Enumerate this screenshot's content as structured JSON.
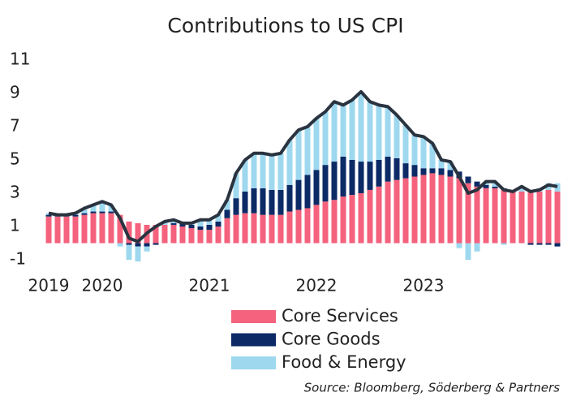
{
  "chart_data": {
    "type": "bar",
    "stacked": true,
    "title": "Contributions to US CPI",
    "source": "Source: Bloomberg, Söderberg & Partners",
    "categories": [
      "2019",
      null,
      null,
      null,
      null,
      null,
      "2020",
      null,
      null,
      null,
      null,
      null,
      null,
      null,
      null,
      null,
      null,
      null,
      "2021",
      null,
      null,
      null,
      null,
      null,
      null,
      null,
      null,
      null,
      null,
      null,
      "2022",
      null,
      null,
      null,
      null,
      null,
      null,
      null,
      null,
      null,
      null,
      null,
      "2023",
      null,
      null,
      null,
      null,
      null,
      null,
      null,
      null,
      null,
      null,
      null,
      null,
      null,
      null,
      null
    ],
    "ylim": [
      -1,
      11
    ],
    "yticks": [
      -1,
      1,
      3,
      5,
      7,
      9,
      11
    ],
    "series": [
      {
        "name": "Core Services",
        "color": "#f4627d",
        "values": [
          1.6,
          1.6,
          1.6,
          1.6,
          1.7,
          1.8,
          1.8,
          1.8,
          1.7,
          1.3,
          1.2,
          1.1,
          1.1,
          1.1,
          1.1,
          1.0,
          0.9,
          0.8,
          0.8,
          1.0,
          1.5,
          1.7,
          1.8,
          1.8,
          1.7,
          1.7,
          1.7,
          1.9,
          2.0,
          2.1,
          2.3,
          2.5,
          2.6,
          2.8,
          2.9,
          3.0,
          3.2,
          3.4,
          3.7,
          3.8,
          3.9,
          4.0,
          4.1,
          4.2,
          4.1,
          4.0,
          3.9,
          3.6,
          3.4,
          3.3,
          3.3,
          3.2,
          3.1,
          3.1,
          3.1,
          3.1,
          3.2,
          3.1
        ]
      },
      {
        "name": "Core Goods",
        "color": "#0b2a66",
        "values": [
          0.1,
          0.1,
          0.1,
          0.1,
          0.1,
          0.1,
          0.1,
          0.1,
          0.0,
          -0.1,
          -0.2,
          -0.2,
          -0.1,
          0.0,
          0.1,
          0.2,
          0.2,
          0.2,
          0.3,
          0.3,
          0.5,
          1.0,
          1.3,
          1.5,
          1.6,
          1.5,
          1.5,
          1.6,
          1.8,
          2.0,
          2.1,
          2.2,
          2.3,
          2.4,
          2.1,
          1.9,
          1.7,
          1.6,
          1.5,
          1.3,
          0.9,
          0.7,
          0.4,
          0.3,
          0.4,
          0.4,
          0.4,
          0.4,
          0.3,
          0.2,
          0.1,
          0.1,
          0.0,
          0.0,
          -0.1,
          -0.1,
          -0.1,
          -0.2
        ]
      },
      {
        "name": "Food & Energy",
        "color": "#9ed8ef",
        "values": [
          0.1,
          0.0,
          0.0,
          0.1,
          0.3,
          0.4,
          0.6,
          0.4,
          -0.2,
          -0.9,
          -0.9,
          -0.3,
          0.0,
          0.2,
          0.2,
          0.0,
          0.1,
          0.4,
          0.3,
          0.4,
          0.6,
          1.5,
          1.9,
          2.1,
          2.1,
          2.1,
          2.2,
          2.7,
          3.0,
          2.9,
          3.1,
          3.2,
          3.6,
          3.1,
          3.6,
          4.2,
          3.6,
          3.3,
          3.0,
          2.6,
          2.3,
          1.8,
          1.9,
          1.5,
          0.5,
          0.5,
          -0.3,
          -1.0,
          -0.5,
          0.2,
          0.3,
          -0.1,
          0.0,
          0.3,
          0.1,
          0.2,
          0.4,
          0.5
        ]
      },
      {
        "type": "line",
        "color": "#2a3340",
        "values": [
          1.8,
          1.7,
          1.7,
          1.8,
          2.1,
          2.3,
          2.5,
          2.3,
          1.5,
          0.3,
          0.1,
          0.6,
          1.0,
          1.3,
          1.4,
          1.2,
          1.2,
          1.4,
          1.4,
          1.7,
          2.6,
          4.2,
          5.0,
          5.4,
          5.4,
          5.3,
          5.4,
          6.2,
          6.8,
          7.0,
          7.5,
          7.9,
          8.5,
          8.3,
          8.6,
          9.1,
          8.5,
          8.3,
          8.2,
          7.7,
          7.1,
          6.5,
          6.4,
          6.0,
          5.0,
          4.9,
          4.0,
          3.0,
          3.2,
          3.7,
          3.7,
          3.2,
          3.1,
          3.4,
          3.1,
          3.2,
          3.5,
          3.4
        ]
      }
    ]
  }
}
